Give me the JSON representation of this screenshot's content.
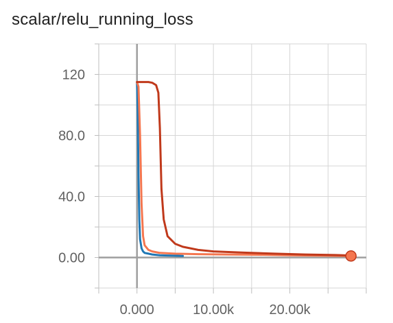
{
  "chart_data": {
    "type": "line",
    "title": "scalar/relu_running_loss",
    "xlabel": "",
    "ylabel": "",
    "xlim": [
      -5000,
      30000
    ],
    "ylim": [
      -20,
      140
    ],
    "grid": true,
    "legend": "none",
    "x_ticks": [
      {
        "value": 0,
        "label": "0.000"
      },
      {
        "value": 10000,
        "label": "10.00k"
      },
      {
        "value": 20000,
        "label": "20.00k"
      }
    ],
    "y_ticks": [
      {
        "value": 0,
        "label": "0.00"
      },
      {
        "value": 40,
        "label": "40.0"
      },
      {
        "value": 80,
        "label": "80.0"
      },
      {
        "value": 120,
        "label": "120"
      }
    ],
    "series": [
      {
        "color": "#1f77b4",
        "x": [
          0,
          100,
          200,
          300,
          400,
          600,
          800,
          1000,
          1500,
          2000,
          3000,
          4000,
          6000
        ],
        "y": [
          115,
          95,
          55,
          25,
          12,
          6,
          4,
          3,
          2.5,
          2,
          1.5,
          1.3,
          1
        ]
      },
      {
        "color": "#f4764f",
        "x": [
          0,
          200,
          400,
          600,
          800,
          1000,
          1500,
          2000,
          3000,
          5000,
          8000,
          12000,
          16000,
          20000,
          24000,
          28000
        ],
        "y": [
          115,
          112,
          80,
          35,
          14,
          8,
          5,
          4,
          3,
          2.5,
          2.2,
          2,
          1.8,
          1.5,
          1.2,
          1
        ]
      },
      {
        "color": "#c0391b",
        "x": [
          0,
          500,
          1000,
          1500,
          2000,
          2500,
          2800,
          3000,
          3200,
          3500,
          4000,
          5000,
          6000,
          8000,
          10000,
          14000,
          18000,
          22000,
          26000,
          28000
        ],
        "y": [
          115,
          115,
          115,
          115,
          114.5,
          113,
          108,
          85,
          45,
          25,
          14,
          9,
          7,
          5,
          4,
          3.2,
          2.5,
          2,
          1.6,
          1.3
        ]
      }
    ],
    "last_point": {
      "x": 28000,
      "y": 1
    }
  }
}
